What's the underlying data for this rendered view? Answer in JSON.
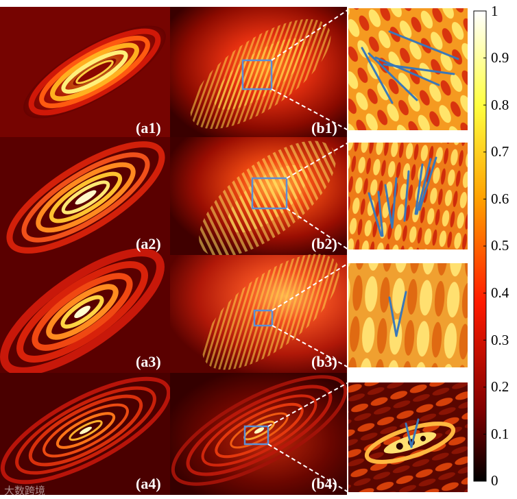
{
  "figure": {
    "panels_a": [
      {
        "label": "(a1)"
      },
      {
        "label": "(a2)"
      },
      {
        "label": "(a3)"
      },
      {
        "label": "(a4)"
      }
    ],
    "panels_b": [
      {
        "label": "(b1)"
      },
      {
        "label": "(b2)"
      },
      {
        "label": "(b3)"
      },
      {
        "label": "(b4)"
      }
    ],
    "colorbar": {
      "colormap": "hot",
      "ticks": [
        "1",
        "0.9",
        "0.8",
        "0.7",
        "0.6",
        "0.5",
        "0.4",
        "0.3",
        "0.2",
        "0.1",
        "0"
      ]
    },
    "colors": {
      "annotation_lines": "#3a78b8",
      "roi_box": "#5b8fd6",
      "dashed_connector": "#ffffff"
    },
    "watermark": "大数跨境"
  }
}
